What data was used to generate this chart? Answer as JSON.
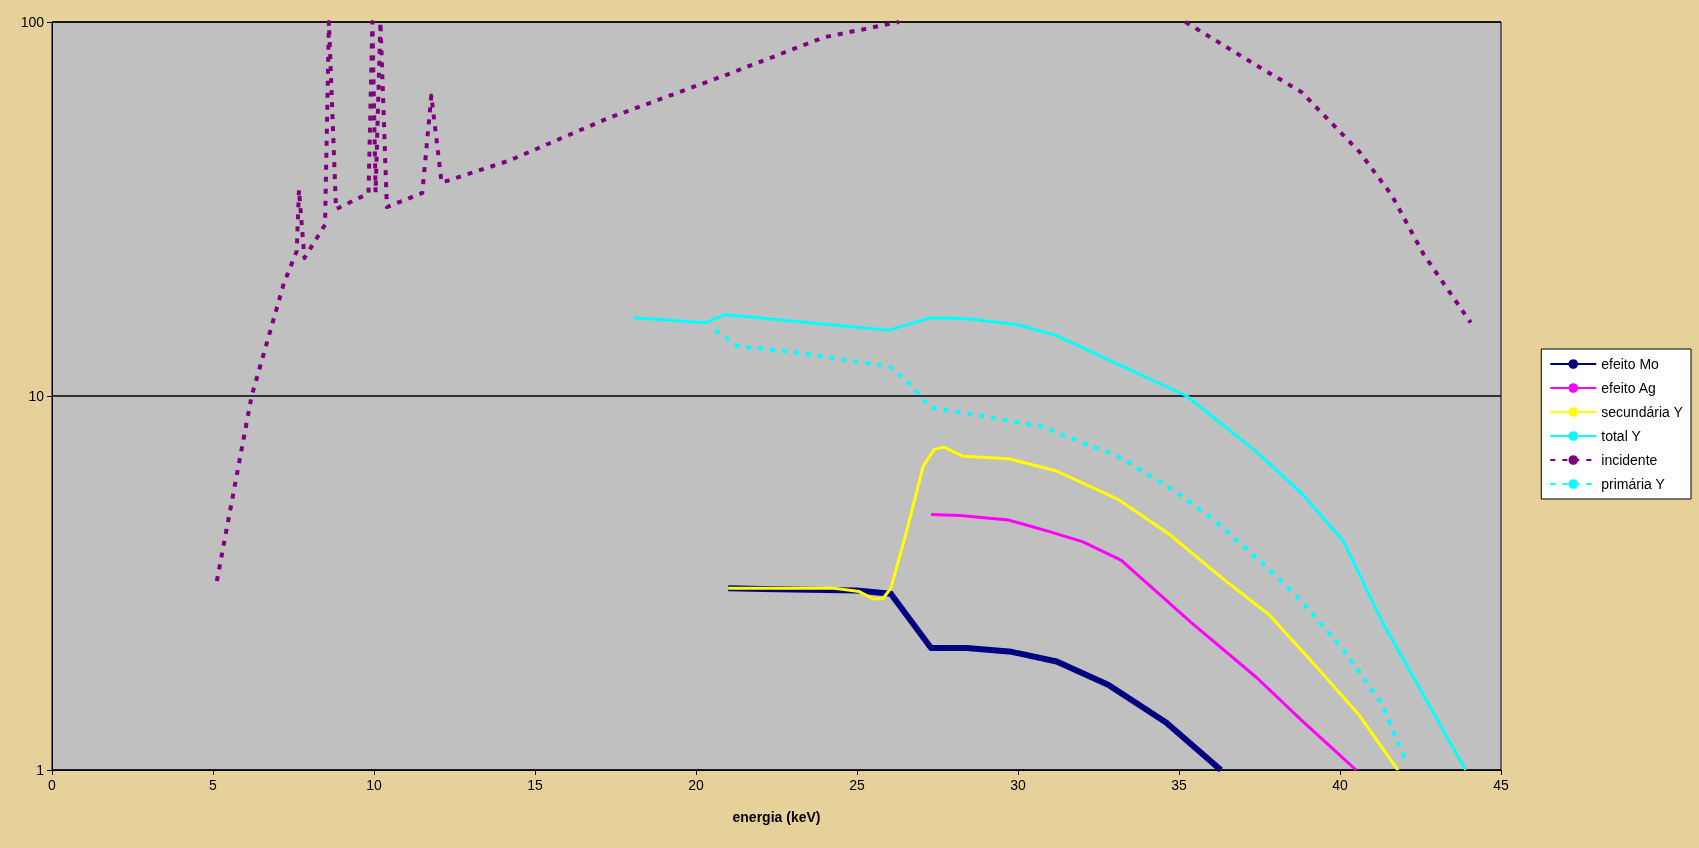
{
  "chart_data": {
    "type": "line",
    "xlabel": "energia (keV)",
    "xlim": [
      0,
      45
    ],
    "xticks": [
      0,
      5,
      10,
      15,
      20,
      25,
      30,
      35,
      40,
      45
    ],
    "ylim": [
      1,
      100
    ],
    "yticks": [
      1,
      10,
      100
    ],
    "log": "y",
    "grid": "y",
    "legend": "right",
    "marker": "none",
    "series": [
      {
        "name": "efeito Mo",
        "color": "#000080",
        "line_style": "solid",
        "x": [
          21.0,
          25.0,
          26.05,
          27.3,
          28.4,
          29.8,
          31.2,
          32.8,
          34.6,
          36.3
        ],
        "values": [
          3.06,
          3.02,
          2.96,
          2.12,
          2.12,
          2.07,
          1.95,
          1.69,
          1.34,
          1
        ]
      },
      {
        "name": "efeito Ag",
        "color": "#ff00ff",
        "line_style": "solid",
        "x": [
          27.3,
          28.2,
          29.7,
          30.9,
          32.0,
          33.2,
          35.4,
          37.4,
          38.8,
          40.5
        ],
        "values": [
          4.82,
          4.79,
          4.66,
          4.36,
          4.08,
          3.64,
          2.47,
          1.77,
          1.36,
          1
        ]
      },
      {
        "name": "secundária Y",
        "color": "#ffff00",
        "line_style": "solid",
        "x": [
          21.0,
          24.3,
          25.07,
          25.5,
          25.8,
          26.05,
          26.5,
          27.06,
          27.4,
          27.7,
          28.3,
          29.7,
          31.2,
          33.1,
          34.7,
          36.4,
          37.8,
          39.1,
          40.6,
          41.8
        ],
        "values": [
          3.06,
          3.06,
          3.0,
          2.87,
          2.87,
          3.06,
          4.22,
          6.5,
          7.2,
          7.3,
          6.9,
          6.8,
          6.3,
          5.3,
          4.27,
          3.23,
          2.6,
          1.96,
          1.4,
          1
        ]
      },
      {
        "name": "total Y",
        "color": "#00ffff",
        "line_style": "solid",
        "x": [
          18.07,
          20.3,
          20.9,
          26.0,
          27.3,
          28.4,
          30.0,
          31.2,
          32.9,
          35.24,
          37.4,
          38.8,
          40.1,
          41.3,
          43.9
        ],
        "values": [
          16.2,
          15.7,
          16.5,
          15.0,
          16.2,
          16.1,
          15.5,
          14.5,
          12.4,
          10,
          7.1,
          5.5,
          4.1,
          2.5,
          1
        ]
      },
      {
        "name": "incidente",
        "color": "#800080",
        "line_style": "dashed",
        "x": [
          5.12,
          6.2,
          7.2,
          7.6,
          7.67,
          7.84,
          8.48,
          8.6,
          8.82,
          9.83,
          9.95,
          10.05,
          10.2,
          10.4,
          10.67,
          11.5,
          11.78,
          12.1,
          14.2,
          17.2,
          20.9,
          23.97,
          26.3,
          30,
          35.2,
          37.4,
          38.8,
          40.6,
          41.6,
          42.6,
          44.06
        ],
        "values": [
          3.2,
          10,
          20,
          24.4,
          35.6,
          23.4,
          28.7,
          100,
          31.6,
          34.8,
          100,
          35,
          100,
          32,
          32.7,
          34.9,
          63.6,
          37.2,
          42.6,
          55,
          72,
          91,
          100,
          null,
          100,
          76.6,
          65,
          45,
          34.5,
          23.9,
          15.7
        ]
      },
      {
        "name": "primária Y",
        "color": "#00ffff",
        "line_style": "dashed",
        "x": [
          20.6,
          21.3,
          23.0,
          26.0,
          26.5,
          27.3,
          28.7,
          30.7,
          33.1,
          34.7,
          36.1,
          37.6,
          38.8,
          40.1,
          41.3,
          42.0
        ],
        "values": [
          15.0,
          13.6,
          13.1,
          12.0,
          11.1,
          9.3,
          8.9,
          8.3,
          6.9,
          5.7,
          4.66,
          3.57,
          2.83,
          2.1,
          1.5,
          1.08
        ]
      }
    ]
  }
}
